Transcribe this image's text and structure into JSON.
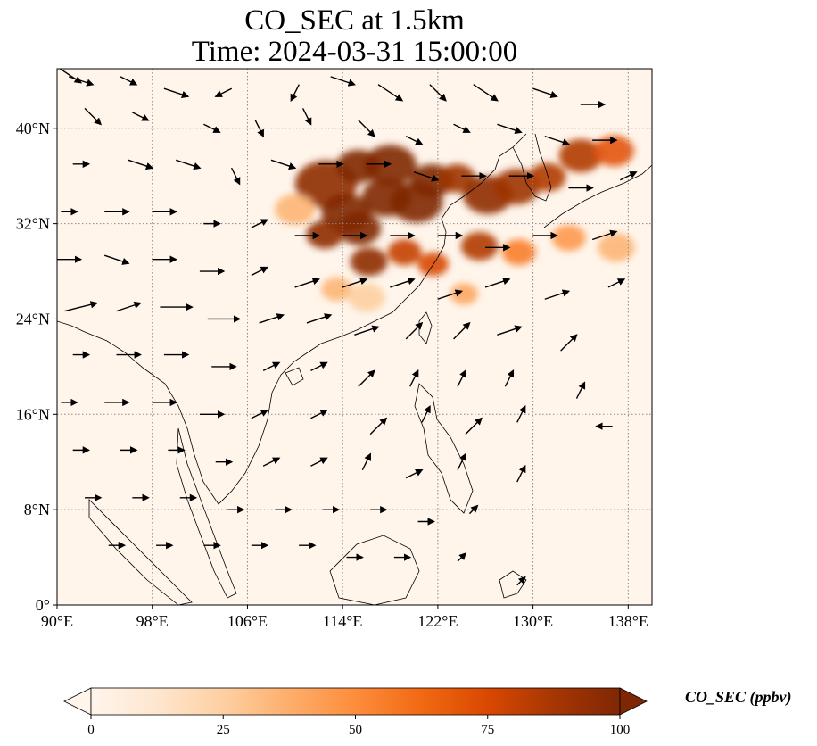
{
  "title": {
    "line1": "CO_SEC at 1.5km",
    "line2": "Time: 2024-03-31 15:00:00"
  },
  "map": {
    "projection": "PlateCarree",
    "lon_range": [
      90,
      140
    ],
    "lat_range": [
      0,
      45
    ],
    "gridlines": "dotted grey",
    "x_ticks": [
      {
        "value": 90,
        "label": "90°E"
      },
      {
        "value": 98,
        "label": "98°E"
      },
      {
        "value": 106,
        "label": "106°E"
      },
      {
        "value": 114,
        "label": "114°E"
      },
      {
        "value": 122,
        "label": "122°E"
      },
      {
        "value": 130,
        "label": "130°E"
      },
      {
        "value": 138,
        "label": "138°E"
      }
    ],
    "y_ticks": [
      {
        "value": 0,
        "label": "0°"
      },
      {
        "value": 8,
        "label": "8°N"
      },
      {
        "value": 16,
        "label": "16°N"
      },
      {
        "value": 24,
        "label": "24°N"
      },
      {
        "value": 32,
        "label": "32°N"
      },
      {
        "value": 40,
        "label": "40°N"
      }
    ],
    "background_color": "#fff5eb",
    "plumes": [
      {
        "lon": 112.6,
        "lat": 35.3,
        "r": 2.0,
        "level": 0.95
      },
      {
        "lon": 114.3,
        "lat": 32.9,
        "r": 1.6,
        "level": 1.0
      },
      {
        "lon": 115.4,
        "lat": 31.6,
        "r": 1.4,
        "level": 1.0
      },
      {
        "lon": 112.5,
        "lat": 31.1,
        "r": 1.2,
        "level": 0.95
      },
      {
        "lon": 115.3,
        "lat": 36.8,
        "r": 1.4,
        "level": 1.0
      },
      {
        "lon": 118.0,
        "lat": 36.9,
        "r": 1.7,
        "level": 1.0
      },
      {
        "lon": 117.7,
        "lat": 34.2,
        "r": 1.6,
        "level": 1.0
      },
      {
        "lon": 120.2,
        "lat": 33.8,
        "r": 1.7,
        "level": 1.0
      },
      {
        "lon": 121.5,
        "lat": 35.6,
        "r": 1.4,
        "level": 1.0
      },
      {
        "lon": 123.6,
        "lat": 35.8,
        "r": 1.2,
        "level": 0.9
      },
      {
        "lon": 126.2,
        "lat": 34.4,
        "r": 1.6,
        "level": 0.95
      },
      {
        "lon": 128.6,
        "lat": 35.1,
        "r": 1.5,
        "level": 0.9
      },
      {
        "lon": 131.2,
        "lat": 35.9,
        "r": 1.2,
        "level": 0.85
      },
      {
        "lon": 134.0,
        "lat": 37.7,
        "r": 1.4,
        "level": 0.85
      },
      {
        "lon": 136.8,
        "lat": 38.1,
        "r": 1.3,
        "level": 0.7
      },
      {
        "lon": 116.2,
        "lat": 28.8,
        "r": 1.2,
        "level": 0.95
      },
      {
        "lon": 119.2,
        "lat": 29.6,
        "r": 1.1,
        "level": 0.8
      },
      {
        "lon": 121.6,
        "lat": 28.6,
        "r": 1.0,
        "level": 0.75
      },
      {
        "lon": 125.5,
        "lat": 30.1,
        "r": 1.2,
        "level": 0.85
      },
      {
        "lon": 128.8,
        "lat": 29.6,
        "r": 1.1,
        "level": 0.55
      },
      {
        "lon": 133.0,
        "lat": 30.8,
        "r": 1.1,
        "level": 0.45
      },
      {
        "lon": 110.0,
        "lat": 33.2,
        "r": 1.3,
        "level": 0.35
      },
      {
        "lon": 113.5,
        "lat": 26.5,
        "r": 1.0,
        "level": 0.35
      },
      {
        "lon": 116.0,
        "lat": 25.8,
        "r": 1.2,
        "level": 0.25
      },
      {
        "lon": 124.2,
        "lat": 26.1,
        "r": 0.9,
        "level": 0.4
      },
      {
        "lon": 137.0,
        "lat": 30.0,
        "r": 1.2,
        "level": 0.35
      }
    ],
    "wind_vectors": [
      [
        91,
        44.5,
        3,
        -2
      ],
      [
        92,
        44,
        3,
        -1
      ],
      [
        96,
        44,
        2,
        -1
      ],
      [
        100,
        43,
        3,
        -1
      ],
      [
        104,
        43,
        -2,
        -1
      ],
      [
        110,
        43,
        -1,
        -2
      ],
      [
        114,
        44,
        3,
        -1
      ],
      [
        118,
        43,
        3,
        -2
      ],
      [
        122,
        43,
        2,
        -2
      ],
      [
        126,
        43,
        3,
        -2
      ],
      [
        131,
        43,
        3,
        -1
      ],
      [
        135,
        42,
        3,
        0
      ],
      [
        93,
        41,
        2,
        -2
      ],
      [
        97,
        41,
        2,
        -1
      ],
      [
        103,
        40,
        2,
        -1
      ],
      [
        107,
        40,
        1,
        -2
      ],
      [
        111,
        41,
        1,
        -2
      ],
      [
        116,
        40,
        2,
        -2
      ],
      [
        120,
        39,
        2,
        -1
      ],
      [
        124,
        40,
        2,
        -1
      ],
      [
        128,
        40,
        3,
        -1
      ],
      [
        132,
        39,
        3,
        -1
      ],
      [
        136,
        39,
        3,
        0
      ],
      [
        92,
        37,
        2,
        0
      ],
      [
        97,
        37,
        3,
        -1
      ],
      [
        101,
        37,
        3,
        -1
      ],
      [
        105,
        36,
        1,
        -2
      ],
      [
        109,
        37,
        3,
        -1
      ],
      [
        113,
        37,
        3,
        0
      ],
      [
        117,
        37,
        3,
        0
      ],
      [
        121,
        36,
        3,
        -1
      ],
      [
        125,
        36,
        3,
        0
      ],
      [
        129,
        36,
        3,
        0
      ],
      [
        134,
        35,
        3,
        0
      ],
      [
        138,
        36,
        2,
        1
      ],
      [
        91,
        33,
        2,
        0
      ],
      [
        95,
        33,
        3,
        0
      ],
      [
        99,
        33,
        3,
        0
      ],
      [
        103,
        32,
        2,
        0
      ],
      [
        107,
        32,
        2,
        1
      ],
      [
        111,
        31,
        3,
        0
      ],
      [
        115,
        31,
        3,
        0
      ],
      [
        119,
        31,
        3,
        0
      ],
      [
        123,
        31,
        3,
        0
      ],
      [
        127,
        30,
        3,
        0
      ],
      [
        131,
        31,
        3,
        0
      ],
      [
        136,
        31,
        3,
        1
      ],
      [
        91,
        29,
        3,
        0
      ],
      [
        95,
        29,
        3,
        -1
      ],
      [
        99,
        29,
        3,
        0
      ],
      [
        103,
        28,
        3,
        0
      ],
      [
        107,
        28,
        2,
        1
      ],
      [
        111,
        27,
        3,
        1
      ],
      [
        115,
        27,
        3,
        1
      ],
      [
        119,
        27,
        3,
        1
      ],
      [
        123,
        26,
        3,
        1
      ],
      [
        127,
        27,
        3,
        1
      ],
      [
        132,
        26,
        3,
        1
      ],
      [
        137,
        27,
        2,
        1
      ],
      [
        92,
        25,
        4,
        1
      ],
      [
        96,
        25,
        3,
        1
      ],
      [
        100,
        25,
        4,
        0
      ],
      [
        104,
        24,
        4,
        0
      ],
      [
        108,
        24,
        3,
        1
      ],
      [
        112,
        24,
        3,
        1
      ],
      [
        116,
        23,
        3,
        1
      ],
      [
        120,
        23,
        2,
        2
      ],
      [
        124,
        23,
        2,
        2
      ],
      [
        128,
        23,
        3,
        1
      ],
      [
        133,
        22,
        2,
        2
      ],
      [
        92,
        21,
        2,
        0
      ],
      [
        96,
        21,
        3,
        0
      ],
      [
        100,
        21,
        3,
        0
      ],
      [
        104,
        20,
        3,
        0
      ],
      [
        108,
        20,
        2,
        1
      ],
      [
        112,
        20,
        2,
        1
      ],
      [
        116,
        19,
        2,
        2
      ],
      [
        120,
        19,
        1,
        2
      ],
      [
        124,
        19,
        1,
        2
      ],
      [
        128,
        19,
        1,
        2
      ],
      [
        134,
        18,
        1,
        2
      ],
      [
        91,
        17,
        2,
        0
      ],
      [
        95,
        17,
        3,
        0
      ],
      [
        99,
        17,
        3,
        0
      ],
      [
        103,
        16,
        3,
        0
      ],
      [
        107,
        16,
        2,
        1
      ],
      [
        112,
        16,
        2,
        1
      ],
      [
        117,
        15,
        2,
        2
      ],
      [
        121,
        16,
        1,
        2
      ],
      [
        125,
        15,
        2,
        2
      ],
      [
        129,
        16,
        1,
        2
      ],
      [
        136,
        15,
        -2,
        0
      ],
      [
        92,
        13,
        2,
        0
      ],
      [
        96,
        13,
        2,
        0
      ],
      [
        100,
        13,
        2,
        0
      ],
      [
        104,
        12,
        2,
        0
      ],
      [
        108,
        12,
        2,
        1
      ],
      [
        112,
        12,
        2,
        1
      ],
      [
        116,
        12,
        1,
        2
      ],
      [
        120,
        11,
        2,
        1
      ],
      [
        124,
        12,
        1,
        2
      ],
      [
        129,
        11,
        1,
        2
      ],
      [
        93,
        9,
        2,
        0
      ],
      [
        97,
        9,
        2,
        0
      ],
      [
        101,
        9,
        2,
        0
      ],
      [
        105,
        8,
        2,
        0
      ],
      [
        109,
        8,
        2,
        0
      ],
      [
        113,
        8,
        2,
        0
      ],
      [
        117,
        8,
        2,
        0
      ],
      [
        121,
        7,
        2,
        0
      ],
      [
        125,
        8,
        1,
        1
      ],
      [
        95,
        5,
        2,
        0
      ],
      [
        99,
        5,
        2,
        0
      ],
      [
        103,
        5,
        2,
        0
      ],
      [
        107,
        5,
        2,
        0
      ],
      [
        111,
        5,
        2,
        0
      ],
      [
        115,
        4,
        2,
        0
      ],
      [
        119,
        4,
        2,
        0
      ],
      [
        124,
        4,
        1,
        1
      ],
      [
        129,
        2,
        1,
        1
      ]
    ]
  },
  "colorbar": {
    "label": "CO_SEC (ppbv)",
    "min": 0,
    "max": 100,
    "extend": "both",
    "colors": [
      "#fff5eb",
      "#fee6ce",
      "#fdd0a2",
      "#fdae6b",
      "#fd8d3c",
      "#f16913",
      "#d94801",
      "#a63603",
      "#7f2704"
    ],
    "ticks": [
      {
        "value": 0,
        "label": "0"
      },
      {
        "value": 25,
        "label": "25"
      },
      {
        "value": 50,
        "label": "50"
      },
      {
        "value": 75,
        "label": "75"
      },
      {
        "value": 100,
        "label": "100"
      }
    ]
  }
}
